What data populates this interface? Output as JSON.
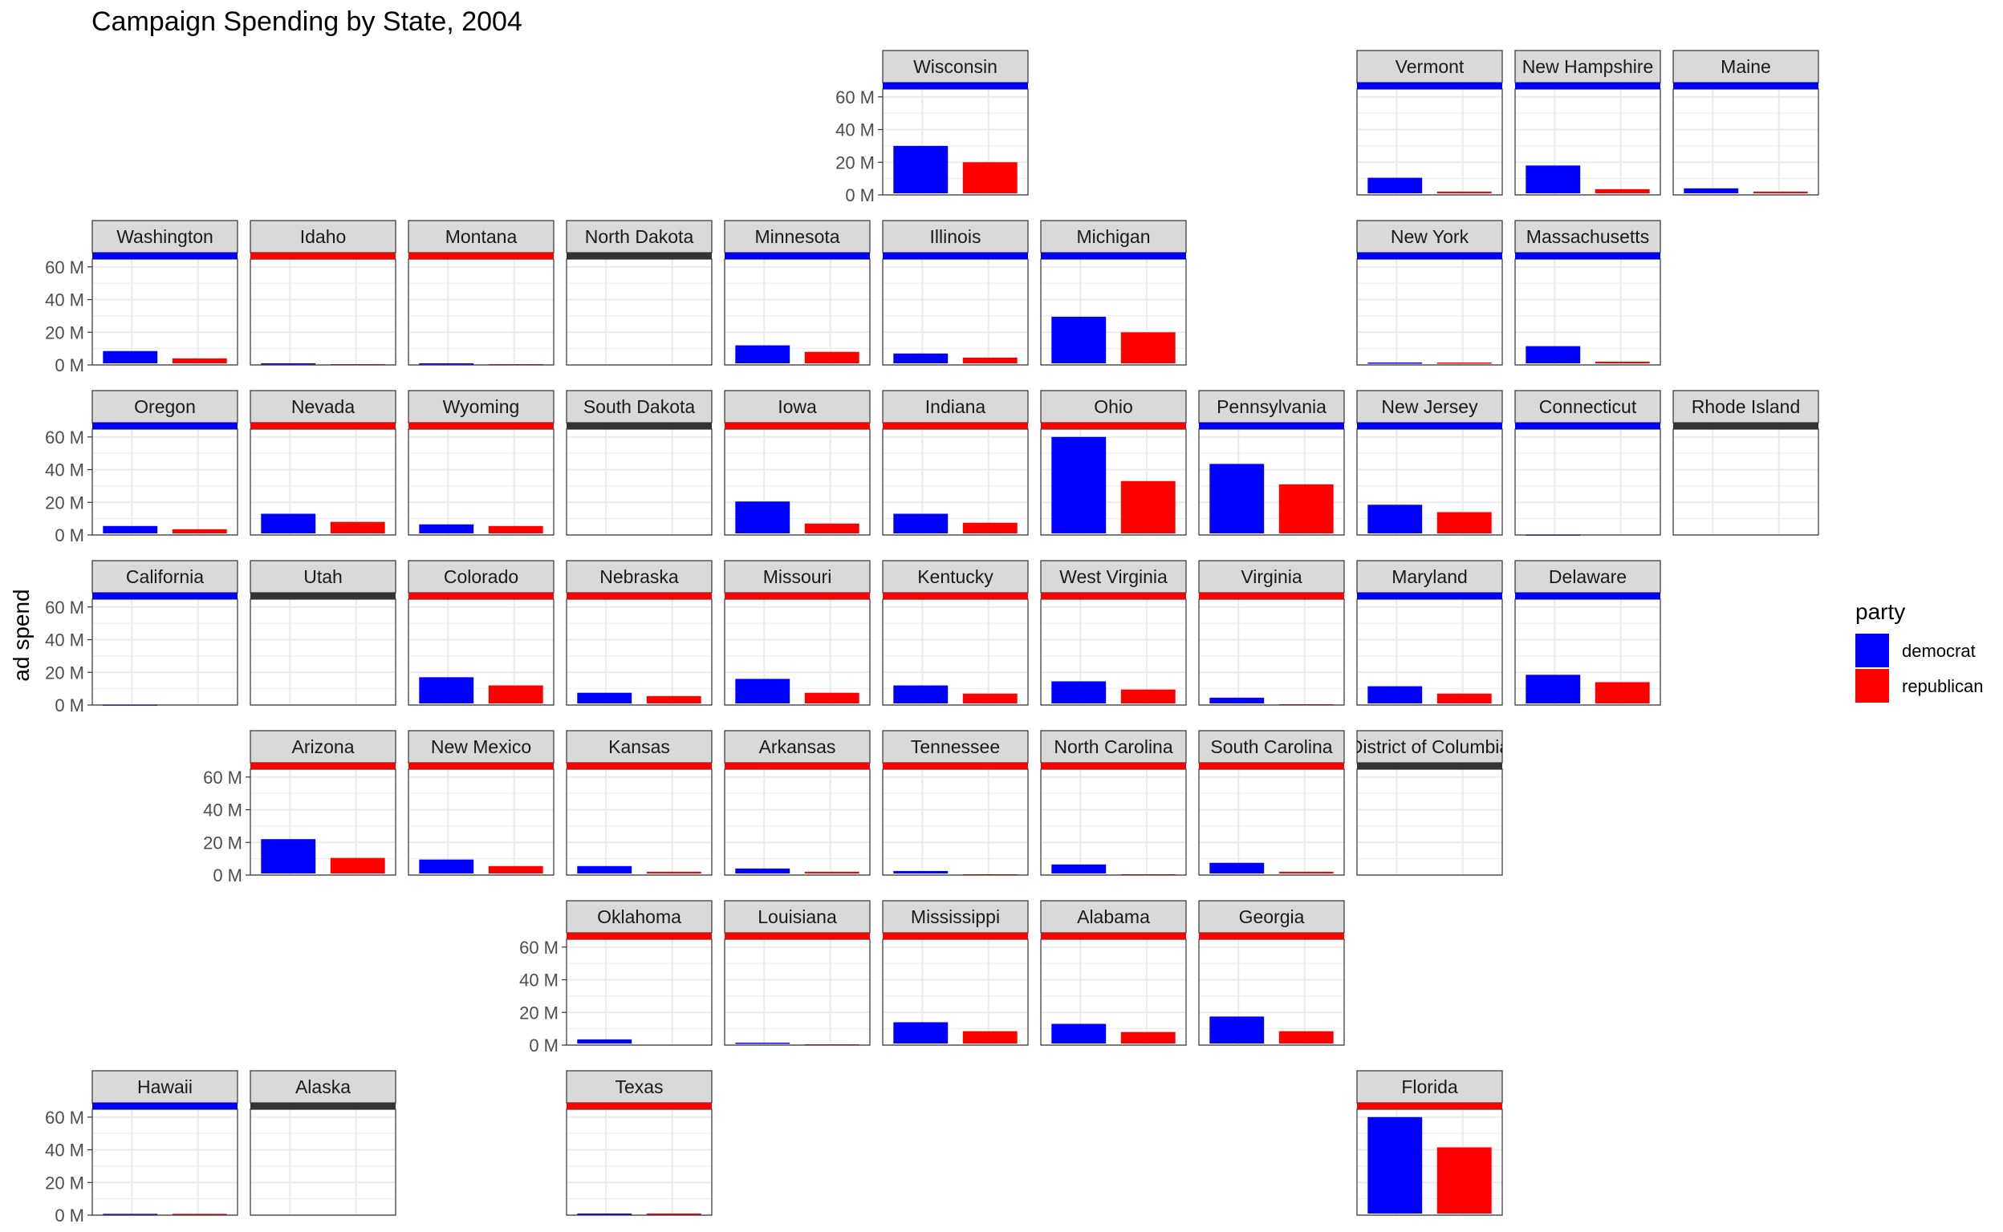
{
  "chart_data": {
    "type": "bar",
    "title": "Campaign Spending by State, 2004",
    "xlabel": "",
    "ylabel": "ad spend",
    "ylim": [
      0,
      60
    ],
    "yunit": "M",
    "yticks": [
      "0 M",
      "20 M",
      "40 M",
      "60 M"
    ],
    "grid": true,
    "facet_layout": "geofacet-us-states",
    "categories": [
      "democrat",
      "republican"
    ],
    "legend": {
      "title": "party",
      "position": "right",
      "entries": [
        {
          "name": "democrat",
          "color": "#0000ff"
        },
        {
          "name": "republican",
          "color": "#ff0000"
        }
      ]
    },
    "colors": {
      "democrat": "#0000ff",
      "republican": "#ff0000",
      "none": "#333333"
    },
    "panels": [
      {
        "state": "Wisconsin",
        "row": 0,
        "col": 5,
        "winner": "democrat",
        "values": [
          30,
          20
        ]
      },
      {
        "state": "Vermont",
        "row": 0,
        "col": 8,
        "winner": "democrat",
        "values": [
          10.5,
          2
        ]
      },
      {
        "state": "New Hampshire",
        "row": 0,
        "col": 9,
        "winner": "democrat",
        "values": [
          18,
          3.5
        ]
      },
      {
        "state": "Maine",
        "row": 0,
        "col": 10,
        "winner": "democrat",
        "values": [
          4,
          2
        ]
      },
      {
        "state": "Washington",
        "row": 1,
        "col": 0,
        "winner": "democrat",
        "values": [
          8.5,
          4
        ]
      },
      {
        "state": "Idaho",
        "row": 1,
        "col": 1,
        "winner": "republican",
        "values": [
          1,
          0.5
        ]
      },
      {
        "state": "Montana",
        "row": 1,
        "col": 2,
        "winner": "republican",
        "values": [
          1,
          0.5
        ]
      },
      {
        "state": "North Dakota",
        "row": 1,
        "col": 3,
        "winner": "none",
        "values": [
          0,
          0
        ]
      },
      {
        "state": "Minnesota",
        "row": 1,
        "col": 4,
        "winner": "democrat",
        "values": [
          12,
          8
        ]
      },
      {
        "state": "Illinois",
        "row": 1,
        "col": 5,
        "winner": "democrat",
        "values": [
          7,
          4.5
        ]
      },
      {
        "state": "Michigan",
        "row": 1,
        "col": 6,
        "winner": "democrat",
        "values": [
          29.5,
          20
        ]
      },
      {
        "state": "New York",
        "row": 1,
        "col": 8,
        "winner": "democrat",
        "values": [
          1.5,
          1.5
        ]
      },
      {
        "state": "Massachusetts",
        "row": 1,
        "col": 9,
        "winner": "democrat",
        "values": [
          11.5,
          2
        ]
      },
      {
        "state": "Oregon",
        "row": 2,
        "col": 0,
        "winner": "democrat",
        "values": [
          5.5,
          3.5
        ]
      },
      {
        "state": "Nevada",
        "row": 2,
        "col": 1,
        "winner": "republican",
        "values": [
          13,
          8
        ]
      },
      {
        "state": "Wyoming",
        "row": 2,
        "col": 2,
        "winner": "republican",
        "values": [
          6.5,
          5.5
        ]
      },
      {
        "state": "South Dakota",
        "row": 2,
        "col": 3,
        "winner": "none",
        "values": [
          0,
          0
        ]
      },
      {
        "state": "Iowa",
        "row": 2,
        "col": 4,
        "winner": "republican",
        "values": [
          20.5,
          7
        ]
      },
      {
        "state": "Indiana",
        "row": 2,
        "col": 5,
        "winner": "republican",
        "values": [
          13,
          7.5
        ]
      },
      {
        "state": "Ohio",
        "row": 2,
        "col": 6,
        "winner": "republican",
        "values": [
          60,
          33
        ]
      },
      {
        "state": "Pennsylvania",
        "row": 2,
        "col": 7,
        "winner": "democrat",
        "values": [
          43.5,
          31
        ]
      },
      {
        "state": "New Jersey",
        "row": 2,
        "col": 8,
        "winner": "democrat",
        "values": [
          18.5,
          14
        ]
      },
      {
        "state": "Connecticut",
        "row": 2,
        "col": 9,
        "winner": "democrat",
        "values": [
          0.3,
          0
        ]
      },
      {
        "state": "Rhode Island",
        "row": 2,
        "col": 10,
        "winner": "none",
        "values": [
          0,
          0
        ]
      },
      {
        "state": "California",
        "row": 3,
        "col": 0,
        "winner": "democrat",
        "values": [
          0.3,
          0
        ]
      },
      {
        "state": "Utah",
        "row": 3,
        "col": 1,
        "winner": "none",
        "values": [
          0,
          0
        ]
      },
      {
        "state": "Colorado",
        "row": 3,
        "col": 2,
        "winner": "republican",
        "values": [
          17,
          12
        ]
      },
      {
        "state": "Nebraska",
        "row": 3,
        "col": 3,
        "winner": "republican",
        "values": [
          7.5,
          5.5
        ]
      },
      {
        "state": "Missouri",
        "row": 3,
        "col": 4,
        "winner": "republican",
        "values": [
          16,
          7.5
        ]
      },
      {
        "state": "Kentucky",
        "row": 3,
        "col": 5,
        "winner": "republican",
        "values": [
          12,
          7
        ]
      },
      {
        "state": "West Virginia",
        "row": 3,
        "col": 6,
        "winner": "republican",
        "values": [
          14.5,
          9.5
        ]
      },
      {
        "state": "Virginia",
        "row": 3,
        "col": 7,
        "winner": "republican",
        "values": [
          4.5,
          0.5
        ]
      },
      {
        "state": "Maryland",
        "row": 3,
        "col": 8,
        "winner": "democrat",
        "values": [
          11.5,
          7
        ]
      },
      {
        "state": "Delaware",
        "row": 3,
        "col": 9,
        "winner": "democrat",
        "values": [
          18.5,
          14
        ]
      },
      {
        "state": "Arizona",
        "row": 4,
        "col": 1,
        "winner": "republican",
        "values": [
          22,
          10.5
        ]
      },
      {
        "state": "New Mexico",
        "row": 4,
        "col": 2,
        "winner": "republican",
        "values": [
          9.5,
          5.5
        ]
      },
      {
        "state": "Kansas",
        "row": 4,
        "col": 3,
        "winner": "republican",
        "values": [
          5.5,
          2
        ]
      },
      {
        "state": "Arkansas",
        "row": 4,
        "col": 4,
        "winner": "republican",
        "values": [
          4,
          2
        ]
      },
      {
        "state": "Tennessee",
        "row": 4,
        "col": 5,
        "winner": "republican",
        "values": [
          2.5,
          0.5
        ]
      },
      {
        "state": "North Carolina",
        "row": 4,
        "col": 6,
        "winner": "republican",
        "values": [
          6.5,
          0.5
        ]
      },
      {
        "state": "South Carolina",
        "row": 4,
        "col": 7,
        "winner": "republican",
        "values": [
          7.5,
          2
        ]
      },
      {
        "state": "District of Columbia",
        "row": 4,
        "col": 8,
        "winner": "none",
        "values": [
          0,
          0
        ]
      },
      {
        "state": "Oklahoma",
        "row": 5,
        "col": 3,
        "winner": "republican",
        "values": [
          3.5,
          0
        ]
      },
      {
        "state": "Louisiana",
        "row": 5,
        "col": 4,
        "winner": "republican",
        "values": [
          1.5,
          0.5
        ]
      },
      {
        "state": "Mississippi",
        "row": 5,
        "col": 5,
        "winner": "republican",
        "values": [
          14,
          8.5
        ]
      },
      {
        "state": "Alabama",
        "row": 5,
        "col": 6,
        "winner": "republican",
        "values": [
          13,
          8
        ]
      },
      {
        "state": "Georgia",
        "row": 5,
        "col": 7,
        "winner": "republican",
        "values": [
          17.5,
          8.5
        ]
      },
      {
        "state": "Hawaii",
        "row": 6,
        "col": 0,
        "winner": "democrat",
        "values": [
          0.8,
          0.8
        ]
      },
      {
        "state": "Alaska",
        "row": 6,
        "col": 1,
        "winner": "none",
        "values": [
          0,
          0
        ]
      },
      {
        "state": "Texas",
        "row": 6,
        "col": 3,
        "winner": "republican",
        "values": [
          1,
          1
        ]
      },
      {
        "state": "Florida",
        "row": 6,
        "col": 8,
        "winner": "republican",
        "values": [
          60,
          41.5
        ]
      }
    ]
  }
}
